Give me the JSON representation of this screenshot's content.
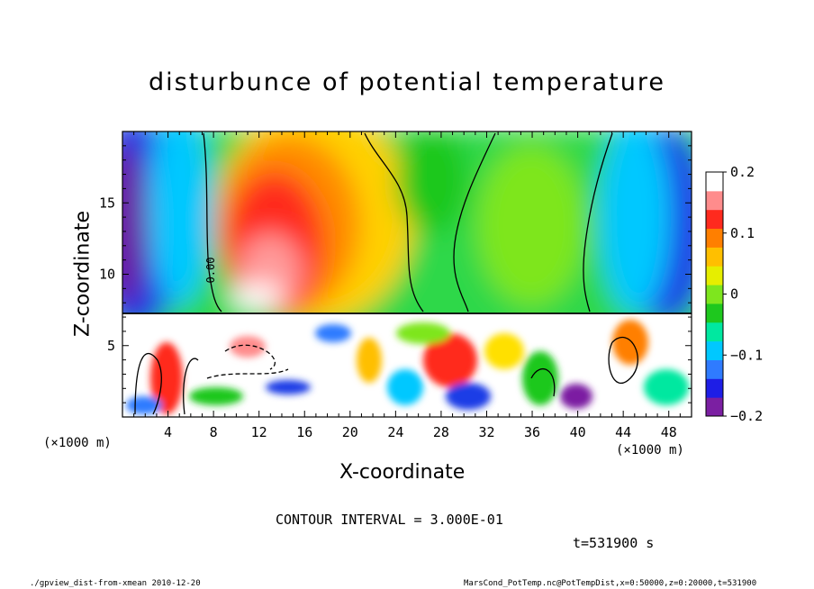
{
  "chart_data": {
    "type": "heatmap",
    "title": "disturbunce of potential temperature",
    "xlabel": "X-coordinate",
    "ylabel": "Z-coordinate",
    "x_unit_left": "(×1000 m)",
    "x_unit_right": "(×1000 m)",
    "xlim": [
      0,
      50
    ],
    "ylim": [
      0,
      20
    ],
    "x_ticks": [
      "4",
      "8",
      "12",
      "16",
      "20",
      "24",
      "28",
      "32",
      "36",
      "40",
      "44",
      "48"
    ],
    "y_ticks": [
      "5",
      "10",
      "15"
    ],
    "colorbar": {
      "range": [
        -0.2,
        0.2
      ],
      "tick_labels": [
        "0.2",
        "0.1",
        "0",
        "−0.1",
        "−0.2"
      ]
    },
    "contour_label": "0.00",
    "contour_interval": "CONTOUR INTERVAL = 3.000E-01",
    "time_label": "t=531900 s",
    "footer_left": "./gpview_dist-from-xmean  2010-12-20",
    "footer_right": "MarsCond_PotTemp.nc@PotTempDist,x=0:50000,z=0:20000,t=531900"
  },
  "colors": {
    "scale": [
      "#7b1fa2",
      "#1e1ee6",
      "#2f7bff",
      "#00c8ff",
      "#00e8a0",
      "#1ec81e",
      "#7ee61e",
      "#e6ee00",
      "#ffbf00",
      "#ff7f00",
      "#ff2a1e",
      "#ff8c8c",
      "#ffffff"
    ]
  }
}
